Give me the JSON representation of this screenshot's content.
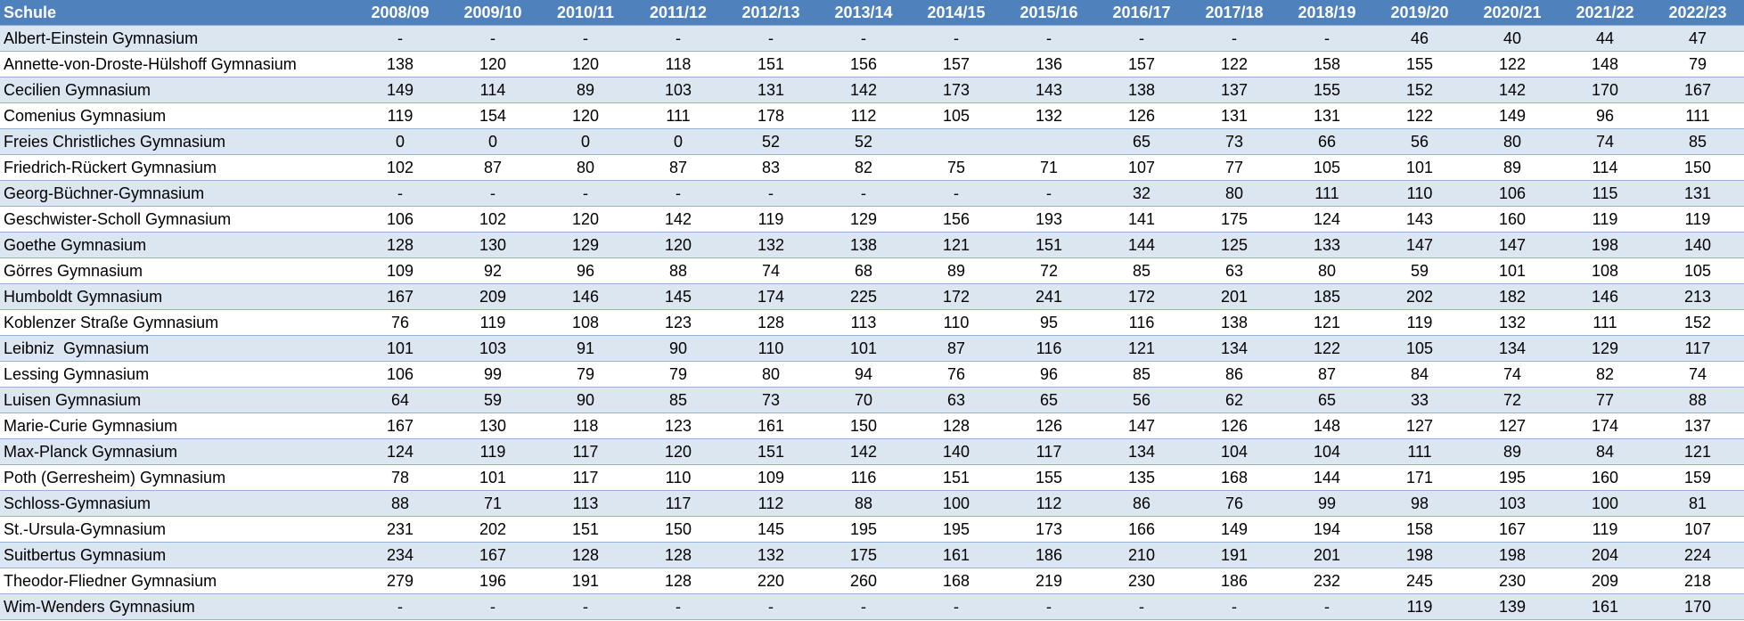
{
  "table": {
    "header": [
      "Schule",
      "2008/09",
      "2009/10",
      "2010/11",
      "2011/12",
      "2012/13",
      "2013/14",
      "2014/15",
      "2015/16",
      "2016/17",
      "2017/18",
      "2018/19",
      "2019/20",
      "2020/21",
      "2021/22",
      "2022/23"
    ],
    "rows": [
      [
        "Albert-Einstein Gymnasium",
        "-",
        "-",
        "-",
        "-",
        "-",
        "-",
        "-",
        "-",
        "-",
        "-",
        "-",
        46,
        40,
        44,
        47
      ],
      [
        "Annette-von-Droste-Hülshoff Gymnasium",
        138,
        120,
        120,
        118,
        151,
        156,
        157,
        136,
        157,
        122,
        158,
        155,
        122,
        148,
        79
      ],
      [
        "Cecilien Gymnasium",
        149,
        114,
        89,
        103,
        131,
        142,
        173,
        143,
        138,
        137,
        155,
        152,
        142,
        170,
        167
      ],
      [
        "Comenius Gymnasium",
        119,
        154,
        120,
        111,
        178,
        112,
        105,
        132,
        126,
        131,
        131,
        122,
        149,
        96,
        111
      ],
      [
        "Freies Christliches Gymnasium",
        0,
        0,
        0,
        0,
        52,
        52,
        null,
        null,
        65,
        73,
        66,
        56,
        80,
        74,
        85
      ],
      [
        "Friedrich-Rückert Gymnasium",
        102,
        87,
        80,
        87,
        83,
        82,
        75,
        71,
        107,
        77,
        105,
        101,
        89,
        114,
        150
      ],
      [
        "Georg-Büchner-Gymnasium",
        "-",
        "-",
        "-",
        "-",
        "-",
        "-",
        "-",
        "-",
        32,
        80,
        111,
        110,
        106,
        115,
        131
      ],
      [
        "Geschwister-Scholl Gymnasium",
        106,
        102,
        120,
        142,
        119,
        129,
        156,
        193,
        141,
        175,
        124,
        143,
        160,
        119,
        119
      ],
      [
        "Goethe Gymnasium",
        128,
        130,
        129,
        120,
        132,
        138,
        121,
        151,
        144,
        125,
        133,
        147,
        147,
        198,
        140
      ],
      [
        "Görres Gymnasium",
        109,
        92,
        96,
        88,
        74,
        68,
        89,
        72,
        85,
        63,
        80,
        59,
        101,
        108,
        105
      ],
      [
        "Humboldt Gymnasium",
        167,
        209,
        146,
        145,
        174,
        225,
        172,
        241,
        172,
        201,
        185,
        202,
        182,
        146,
        213
      ],
      [
        "Koblenzer Straße Gymnasium",
        76,
        119,
        108,
        123,
        128,
        113,
        110,
        95,
        116,
        138,
        121,
        119,
        132,
        111,
        152
      ],
      [
        "Leibniz  Gymnasium",
        101,
        103,
        91,
        90,
        110,
        101,
        87,
        116,
        121,
        134,
        122,
        105,
        134,
        129,
        117
      ],
      [
        "Lessing Gymnasium",
        106,
        99,
        79,
        79,
        80,
        94,
        76,
        96,
        85,
        86,
        87,
        84,
        74,
        82,
        74
      ],
      [
        "Luisen Gymnasium",
        64,
        59,
        90,
        85,
        73,
        70,
        63,
        65,
        56,
        62,
        65,
        33,
        72,
        77,
        88
      ],
      [
        "Marie-Curie Gymnasium",
        167,
        130,
        118,
        123,
        161,
        150,
        128,
        126,
        147,
        126,
        148,
        127,
        127,
        174,
        137
      ],
      [
        "Max-Planck Gymnasium",
        124,
        119,
        117,
        120,
        151,
        142,
        140,
        117,
        134,
        104,
        104,
        111,
        89,
        84,
        121
      ],
      [
        "Poth (Gerresheim) Gymnasium",
        78,
        101,
        117,
        110,
        109,
        116,
        151,
        155,
        135,
        168,
        144,
        171,
        195,
        160,
        159
      ],
      [
        "Schloss-Gymnasium",
        88,
        71,
        113,
        117,
        112,
        88,
        100,
        112,
        86,
        76,
        99,
        98,
        103,
        100,
        81
      ],
      [
        "St.-Ursula-Gymnasium",
        231,
        202,
        151,
        150,
        145,
        195,
        195,
        173,
        166,
        149,
        194,
        158,
        167,
        119,
        107
      ],
      [
        "Suitbertus Gymnasium",
        234,
        167,
        128,
        128,
        132,
        175,
        161,
        186,
        210,
        191,
        201,
        198,
        198,
        204,
        224
      ],
      [
        "Theodor-Fliedner Gymnasium",
        279,
        196,
        191,
        128,
        220,
        260,
        168,
        219,
        230,
        186,
        232,
        245,
        230,
        209,
        218
      ],
      [
        "Wim-Wenders Gymnasium",
        "-",
        "-",
        "-",
        "-",
        "-",
        "-",
        "-",
        "-",
        "-",
        "-",
        "-",
        119,
        139,
        161,
        170
      ]
    ]
  }
}
